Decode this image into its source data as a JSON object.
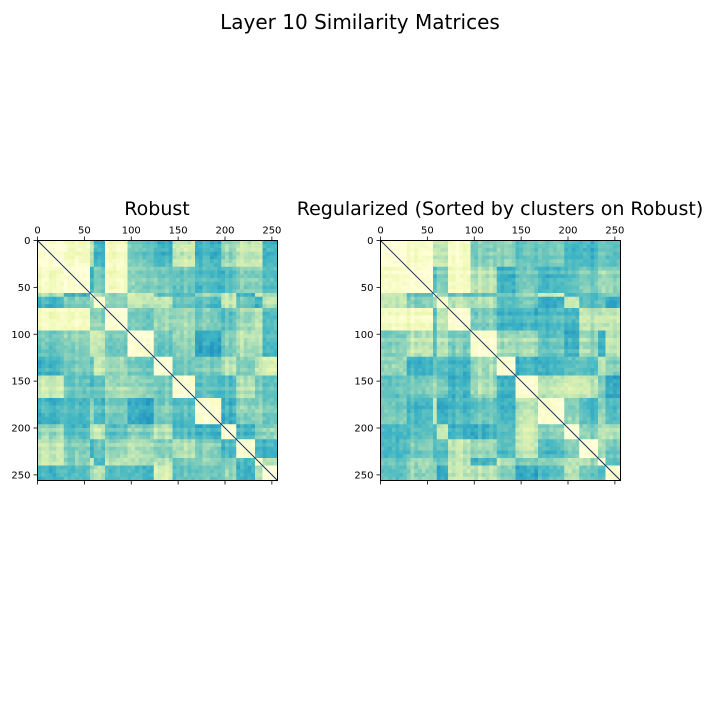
{
  "figure": {
    "title": "Layer 10 Similarity Matrices"
  },
  "chart_data": [
    {
      "type": "heatmap",
      "title": "Robust",
      "xlabel": "",
      "ylabel": "",
      "xlim": [
        0,
        256
      ],
      "ylim": [
        256,
        0
      ],
      "xticks": [
        0,
        50,
        100,
        150,
        200,
        250
      ],
      "yticks": [
        0,
        50,
        100,
        150,
        200,
        250
      ],
      "x_axis_position": "top",
      "grid": false,
      "matrix_size": 256,
      "colormap": "YlGnBu",
      "colormap_colors": [
        "#ffffd9",
        "#edf8b1",
        "#c7e9b4",
        "#7fcdbb",
        "#41b6c4",
        "#1d91c0"
      ],
      "diagonal_color": "#081d58",
      "diagonal_blocks": [
        [
          0,
          28
        ],
        [
          28,
          55
        ],
        [
          55,
          62
        ],
        [
          62,
          72
        ],
        [
          72,
          98
        ],
        [
          98,
          123
        ],
        [
          123,
          145
        ],
        [
          145,
          168
        ],
        [
          168,
          196
        ],
        [
          196,
          212
        ],
        [
          212,
          233
        ],
        [
          233,
          242
        ],
        [
          242,
          256
        ]
      ],
      "block_groups": [
        0,
        0,
        1,
        2,
        0,
        3,
        4,
        5,
        6,
        7,
        8,
        9,
        10
      ]
    },
    {
      "type": "heatmap",
      "title": "Regularized (Sorted by clusters on Robust)",
      "xlabel": "",
      "ylabel": "",
      "xlim": [
        0,
        256
      ],
      "ylim": [
        256,
        0
      ],
      "xticks": [
        0,
        50,
        100,
        150,
        200,
        250
      ],
      "yticks": [
        0,
        50,
        100,
        150,
        200,
        250
      ],
      "x_axis_position": "top",
      "grid": false,
      "matrix_size": 256,
      "colormap": "YlGnBu",
      "colormap_colors": [
        "#ffffd9",
        "#edf8b1",
        "#c7e9b4",
        "#7fcdbb",
        "#41b6c4",
        "#1d91c0"
      ],
      "diagonal_color": "#081d58",
      "diagonal_blocks": [
        [
          0,
          28
        ],
        [
          28,
          55
        ],
        [
          55,
          62
        ],
        [
          62,
          72
        ],
        [
          72,
          98
        ],
        [
          98,
          123
        ],
        [
          123,
          145
        ],
        [
          145,
          168
        ],
        [
          168,
          196
        ],
        [
          196,
          212
        ],
        [
          212,
          233
        ],
        [
          233,
          242
        ],
        [
          242,
          256
        ]
      ],
      "block_groups": [
        0,
        0,
        1,
        2,
        0,
        3,
        4,
        5,
        6,
        7,
        8,
        9,
        10
      ]
    }
  ]
}
